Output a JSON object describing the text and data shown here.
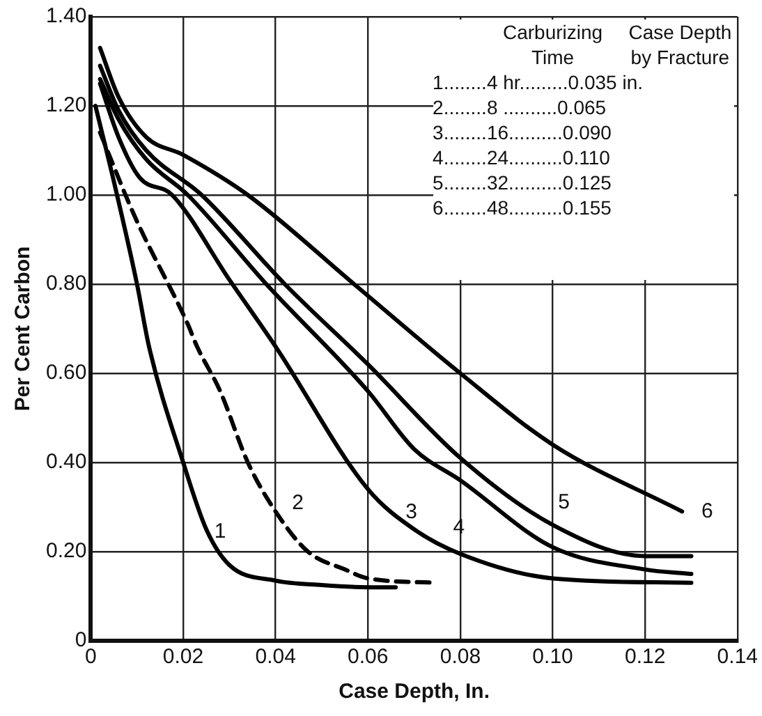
{
  "chart_data": {
    "type": "line",
    "xlabel": "Case Depth, In.",
    "ylabel": "Per Cent Carbon",
    "xlim": [
      0,
      0.14
    ],
    "xticks": [
      0,
      {
        "value": 0.02,
        "label": "0.02"
      },
      {
        "value": 0.04,
        "label": "0.04"
      },
      {
        "value": 0.06,
        "label": "0.06"
      },
      {
        "value": 0.08,
        "label": "0.08"
      },
      {
        "value": 0.1,
        "label": "0.10"
      },
      {
        "value": 0.12,
        "label": "0.12"
      },
      {
        "value": 0.14,
        "label": "0.14"
      }
    ],
    "ylim": [
      0,
      1.4
    ],
    "yticks": [
      0,
      {
        "value": 0.2,
        "label": "0.20"
      },
      {
        "value": 0.4,
        "label": "0.40"
      },
      {
        "value": 0.6,
        "label": "0.60"
      },
      {
        "value": 0.8,
        "label": "0.80"
      },
      {
        "value": 1,
        "label": "1.00"
      },
      {
        "value": 1.2,
        "label": "1.20"
      },
      {
        "value": 1.4,
        "label": "1.40"
      }
    ],
    "grid": true,
    "legend": false,
    "marker": "none",
    "series": [
      {
        "color": "#000000",
        "line_style": "solid",
        "x": [
          0.001,
          0.005,
          0.01,
          0.0126,
          0.02,
          0.025,
          0.03,
          0.04,
          0.05,
          0.06,
          0.066
        ],
        "values": [
          1.2,
          1.03,
          0.8,
          0.66,
          0.4,
          0.25,
          0.17,
          0.135,
          0.125,
          0.12,
          0.12
        ]
      },
      {
        "color": "#000000",
        "line_style": "dashed",
        "x": [
          0.002,
          0.0096,
          0.021,
          0.023,
          0.028,
          0.034,
          0.04,
          0.047,
          0.055,
          0.06,
          0.075
        ],
        "values": [
          1.14,
          0.95,
          0.71,
          0.66,
          0.56,
          0.4,
          0.29,
          0.2,
          0.16,
          0.14,
          0.13
        ]
      },
      {
        "color": "#000000",
        "line_style": "solid",
        "x": [
          0.002,
          0.006,
          0.0105,
          0.0176,
          0.03,
          0.04,
          0.06,
          0.07,
          0.08,
          0.1,
          0.13
        ],
        "values": [
          1.25,
          1.13,
          1.04,
          1.0,
          0.81,
          0.66,
          0.34,
          0.25,
          0.195,
          0.14,
          0.13
        ]
      },
      {
        "color": "#000000",
        "line_style": "solid",
        "x": [
          0.002,
          0.006,
          0.012,
          0.021,
          0.038,
          0.06,
          0.07,
          0.08,
          0.1,
          0.12,
          0.13
        ],
        "values": [
          1.26,
          1.17,
          1.08,
          1.0,
          0.8,
          0.56,
          0.43,
          0.36,
          0.21,
          0.16,
          0.15
        ]
      },
      {
        "color": "#000000",
        "line_style": "solid",
        "x": [
          0.002,
          0.006,
          0.012,
          0.024,
          0.042,
          0.06,
          0.08,
          0.1,
          0.12,
          0.13
        ],
        "values": [
          1.29,
          1.19,
          1.1,
          1.0,
          0.8,
          0.62,
          0.41,
          0.26,
          0.19,
          0.19
        ]
      },
      {
        "color": "#000000",
        "line_style": "solid",
        "x": [
          0.002,
          0.006,
          0.012,
          0.02,
          0.034,
          0.057,
          0.08,
          0.1,
          0.128
        ],
        "values": [
          1.33,
          1.22,
          1.13,
          1.09,
          1.0,
          0.8,
          0.6,
          0.44,
          0.29
        ]
      }
    ],
    "annotations": [
      "Carburizing Time",
      "Case Depth by Fracture",
      "1........4 hr.........0.035 in.",
      "2........8 ..........0.065",
      "3........16..........0.090",
      "4........24..........0.110",
      "5........32..........0.125",
      "6........48..........0.155",
      {
        "text": "1",
        "x": 0.025,
        "y": 0.25
      },
      {
        "text": "2",
        "x": 0.04,
        "y": 0.29
      },
      {
        "text": "3",
        "x": 0.07,
        "y": 0.25
      },
      {
        "text": "4",
        "x": 0.08,
        "y": 0.36
      },
      {
        "text": "5",
        "x": 0.1,
        "y": 0.26
      },
      {
        "text": "6",
        "x": 0.128,
        "y": 0.29
      }
    ]
  }
}
